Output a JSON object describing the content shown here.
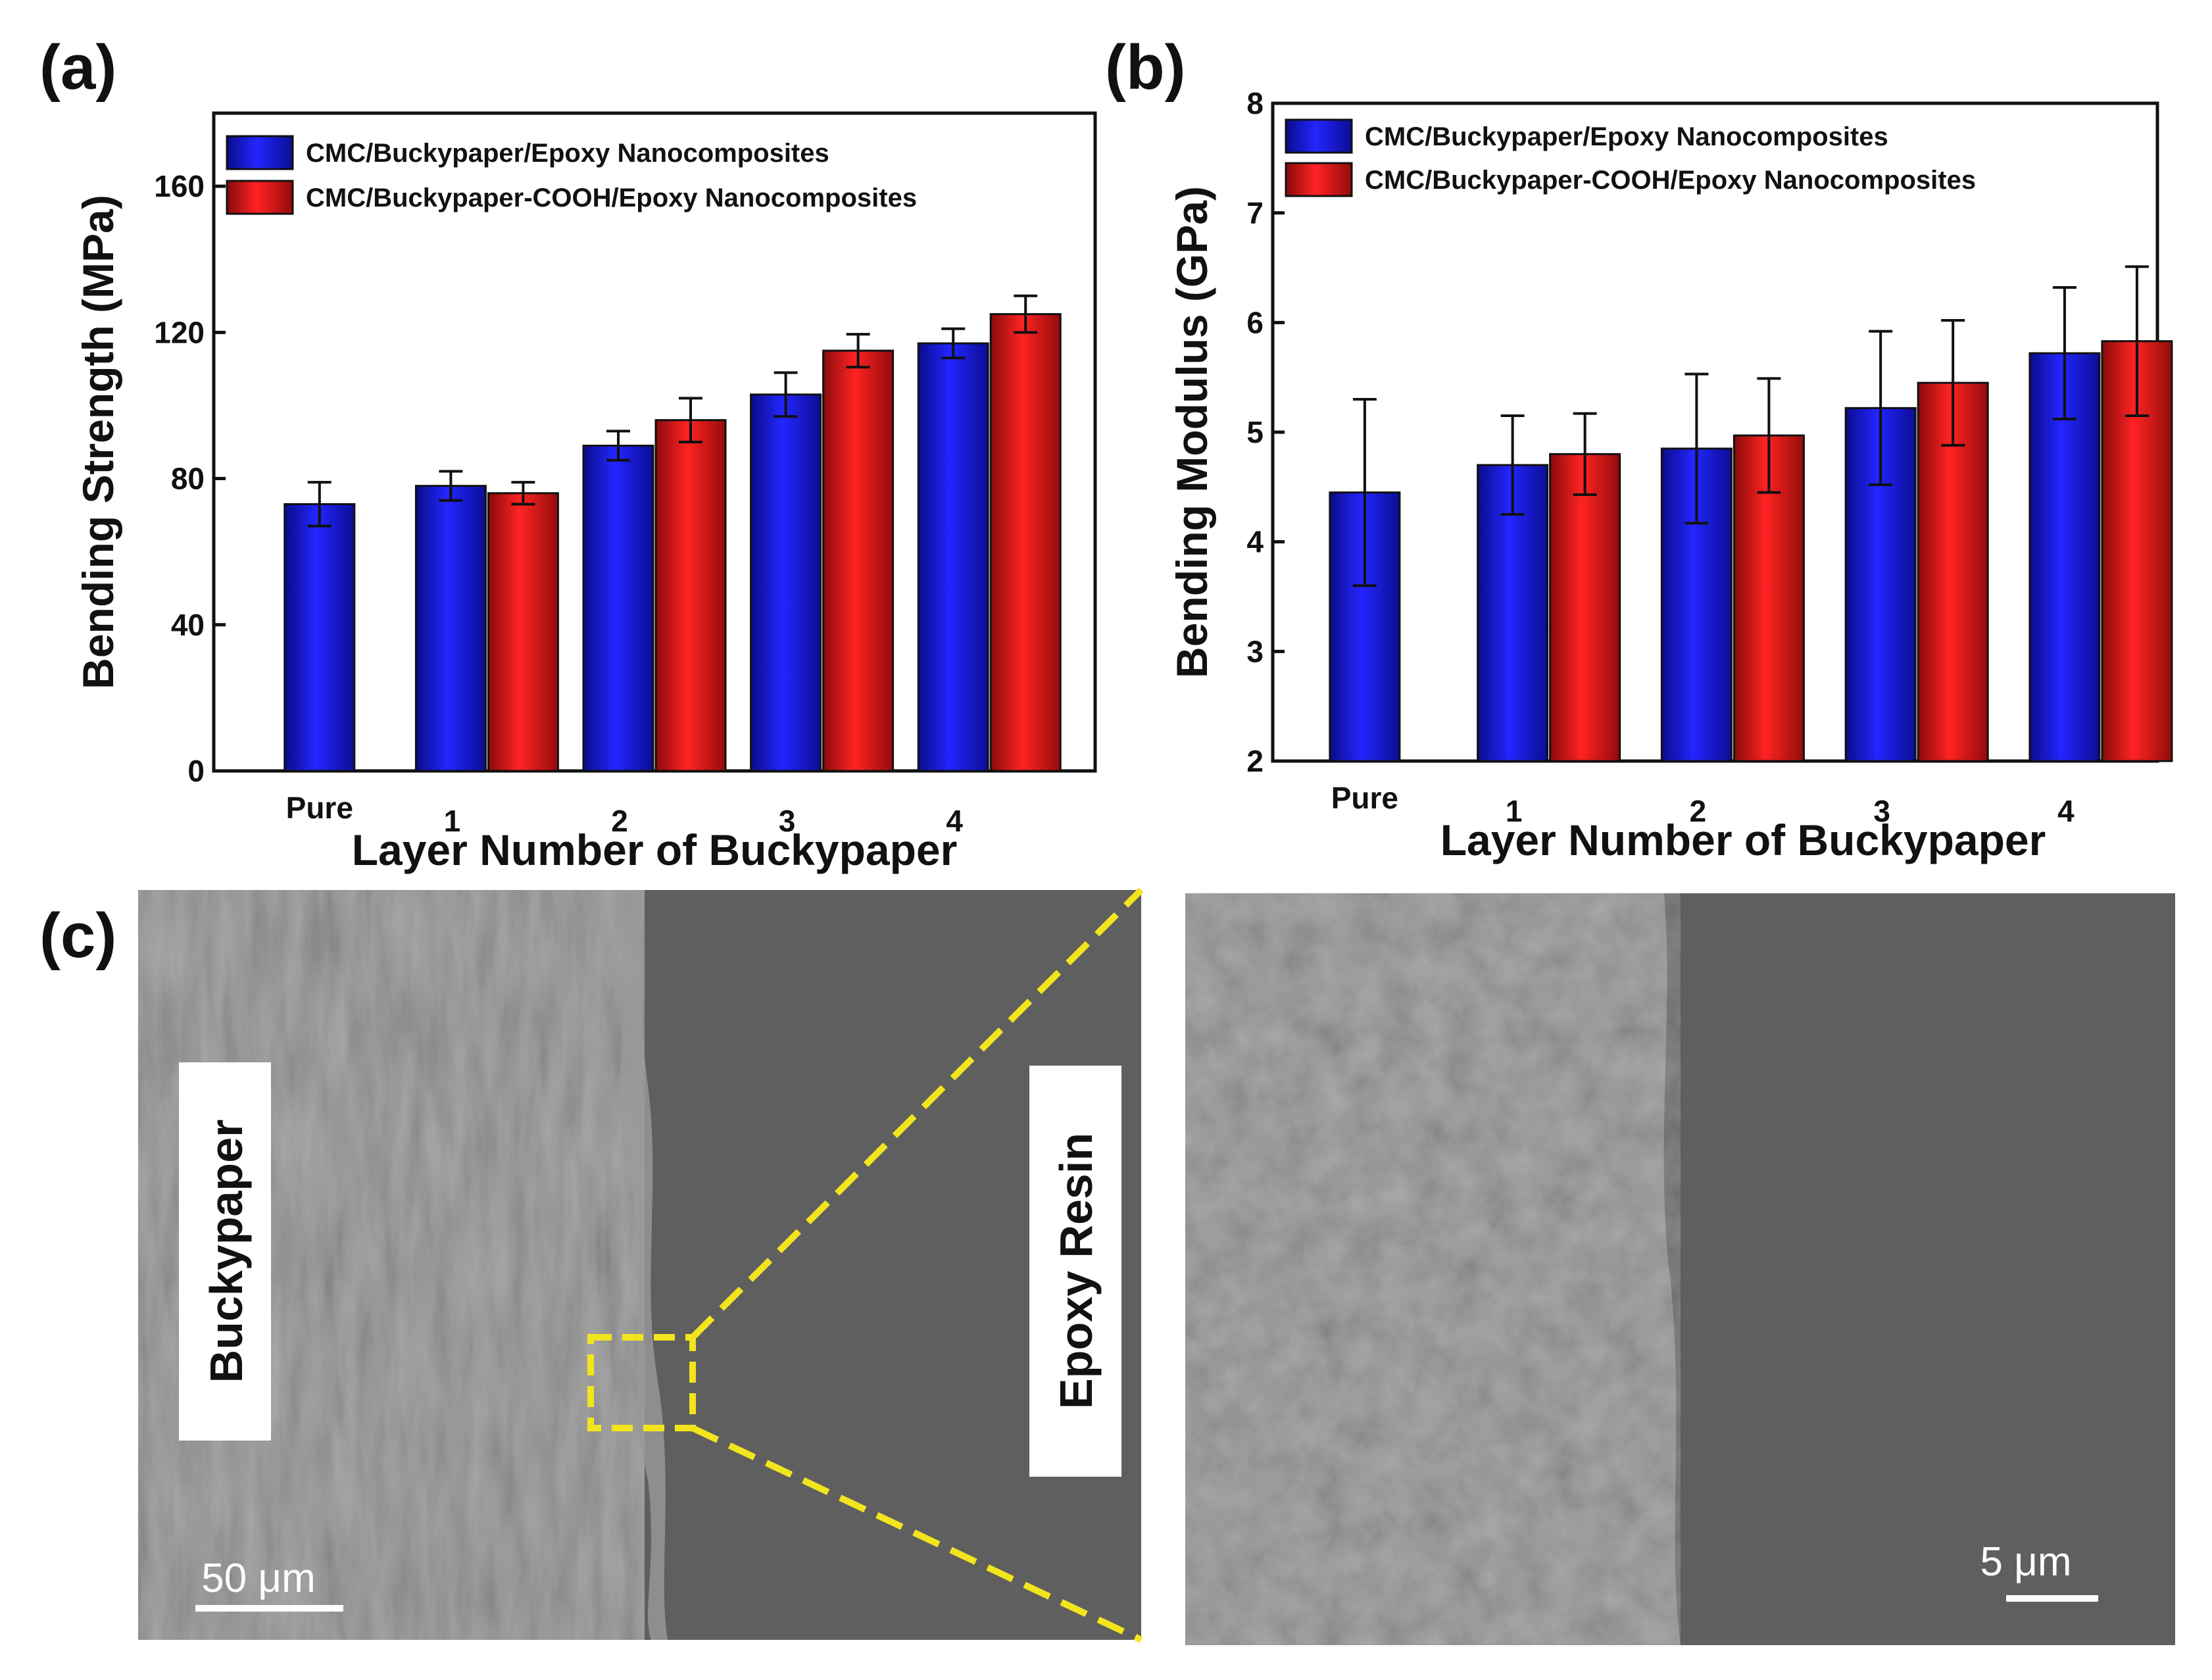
{
  "colors": {
    "series_blue": "#1418e6",
    "series_red": "#e61414",
    "zoom_box": "#f2e51d",
    "sem_bg": "#5d5d5d"
  },
  "chart_data": [
    {
      "panel": "(a)",
      "type": "bar",
      "categories": [
        "Pure",
        "1",
        "2",
        "3",
        "4"
      ],
      "series": [
        {
          "name": "CMC/Buckypaper/Epoxy Nanocomposites",
          "color": "#1418e6",
          "values": [
            73,
            78,
            89,
            103,
            117
          ],
          "errors": [
            6,
            4,
            4,
            6,
            4
          ]
        },
        {
          "name": "CMC/Buckypaper-COOH/Epoxy Nanocomposites",
          "color": "#e61414",
          "values": [
            null,
            76,
            96,
            115,
            125
          ],
          "errors": [
            null,
            3,
            6,
            4.5,
            5
          ]
        }
      ],
      "xlabel": "Layer Number of Buckypaper",
      "ylabel": "Bending Strength (MPa)",
      "ylim": [
        0,
        180
      ],
      "yticks": [
        0,
        40,
        80,
        120,
        160
      ],
      "legend": "top-left"
    },
    {
      "panel": "(b)",
      "type": "bar",
      "categories": [
        "Pure",
        "1",
        "2",
        "3",
        "4"
      ],
      "series": [
        {
          "name": "CMC/Buckypaper/Epoxy Nanocomposites",
          "color": "#1418e6",
          "values": [
            4.45,
            4.7,
            4.85,
            5.22,
            5.72
          ],
          "errors": [
            0.85,
            0.45,
            0.68,
            0.7,
            0.6
          ]
        },
        {
          "name": "CMC/Buckypaper-COOH/Epoxy Nanocomposites",
          "color": "#e61414",
          "values": [
            null,
            4.8,
            4.97,
            5.45,
            5.83
          ],
          "errors": [
            null,
            0.37,
            0.52,
            0.57,
            0.68
          ]
        }
      ],
      "xlabel": "Layer Number of Buckypaper",
      "ylabel": "Bending Modulus (GPa)",
      "ylim": [
        2,
        8
      ],
      "yticks": [
        2,
        3,
        4,
        5,
        6,
        7,
        8
      ],
      "legend": "top-left"
    }
  ],
  "panel_c": {
    "label": "(c)",
    "left_image": {
      "label_left": "Buckypaper",
      "label_right": "Epoxy Resin",
      "scale_bar": "50 μm"
    },
    "right_image": {
      "scale_bar": "5 μm"
    }
  }
}
